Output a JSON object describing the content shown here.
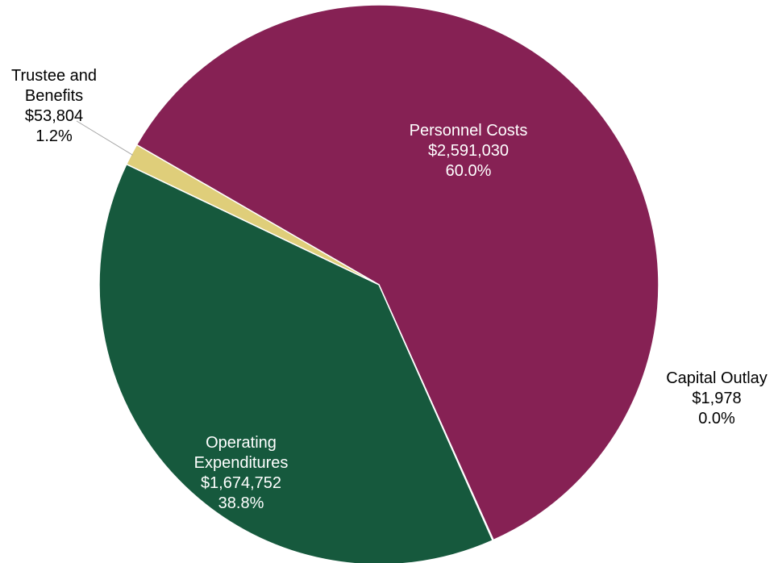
{
  "chart_data": {
    "type": "pie",
    "title": "",
    "slices": [
      {
        "label_lines": [
          "Personnel Costs"
        ],
        "value_text": "$2,591,030",
        "percent_text": "60.0%",
        "value": 2591030,
        "color": "#862154",
        "label_color": "#ffffff"
      },
      {
        "label_lines": [
          "Capital Outlay"
        ],
        "value_text": "$1,978",
        "percent_text": "0.0%",
        "value": 1978,
        "color": "#c9c9c9",
        "label_color": "#000000"
      },
      {
        "label_lines": [
          "Operating",
          "Expenditures"
        ],
        "value_text": "$1,674,752",
        "percent_text": "38.8%",
        "value": 1674752,
        "color": "#16593d",
        "label_color": "#ffffff"
      },
      {
        "label_lines": [
          "Trustee and",
          "Benefits"
        ],
        "value_text": "$53,804",
        "percent_text": "1.2%",
        "value": 53804,
        "color": "#dfce7a",
        "label_color": "#000000"
      }
    ],
    "start_angle_deg": -60,
    "direction": "clockwise",
    "legend": "none"
  }
}
